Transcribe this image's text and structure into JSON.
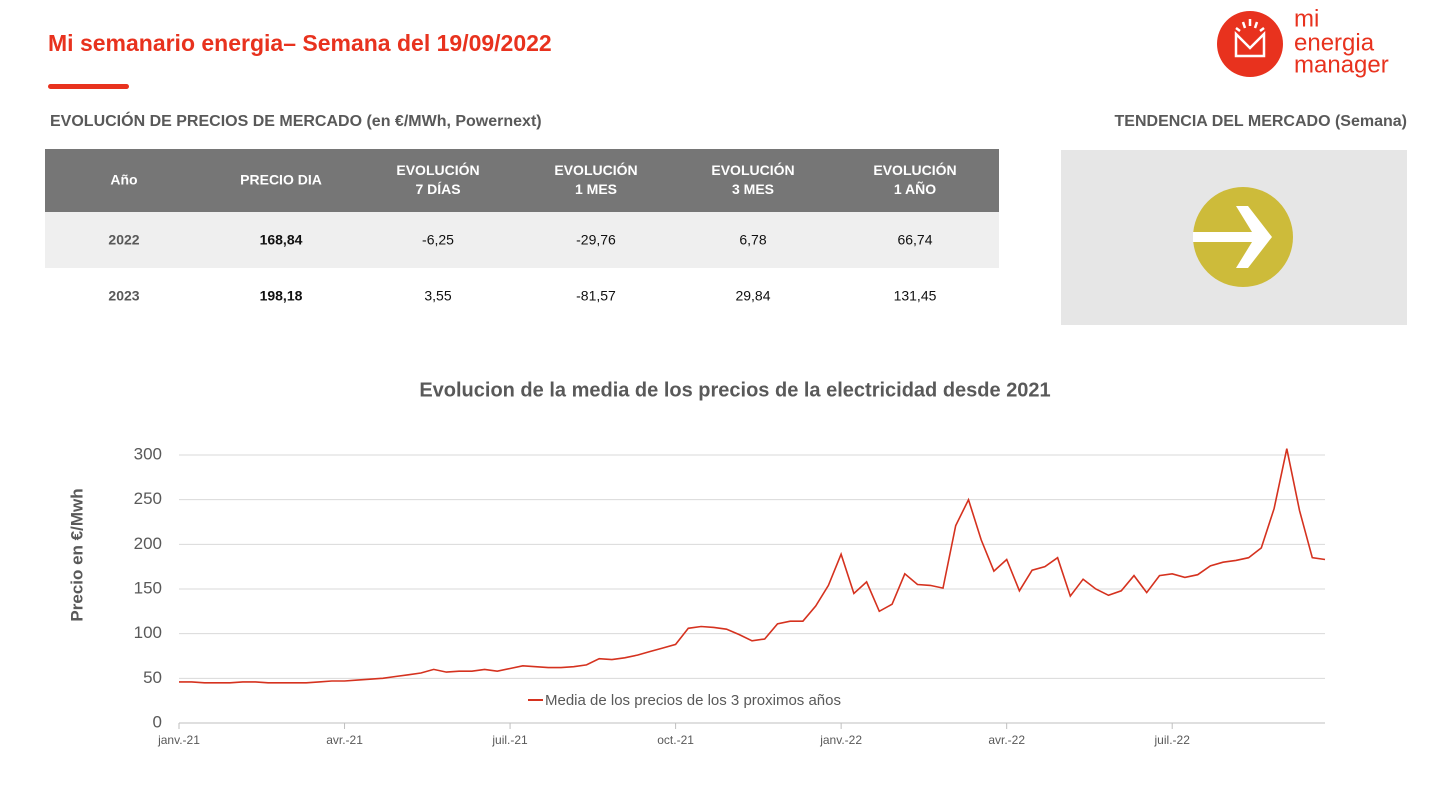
{
  "header": {
    "title": "Mi semanario energia– Semana del 19/09/2022",
    "logo": [
      "mi",
      "energia",
      "manager"
    ]
  },
  "table": {
    "caption": "EVOLUCIÓN DE PRECIOS DE MERCADO (en €/MWh, Powernext)",
    "columns": [
      [
        "Año"
      ],
      [
        "PRECIO DIA"
      ],
      [
        "EVOLUCIÓN",
        "7 DÍAS"
      ],
      [
        "EVOLUCIÓN",
        "1 MES"
      ],
      [
        "EVOLUCIÓN",
        "3 MES"
      ],
      [
        "EVOLUCIÓN",
        "1 AÑO"
      ]
    ],
    "rows": [
      [
        "2022",
        "168,84",
        "-6,25",
        "-29,76",
        "6,78",
        "66,74"
      ],
      [
        "2023",
        "198,18",
        "3,55",
        "-81,57",
        "29,84",
        "131,45"
      ]
    ]
  },
  "trend": {
    "title": "TENDENCIA DEL MERCADO (Semana)"
  },
  "chart_data": {
    "type": "line",
    "title": "Evolucion de la media de los precios de la electricidad desde 2021",
    "ylabel": "Precio en €/Mwh",
    "categories": [
      "janv.-21",
      null,
      null,
      null,
      null,
      null,
      null,
      null,
      null,
      null,
      null,
      null,
      null,
      "avr.-21",
      null,
      null,
      null,
      null,
      null,
      null,
      null,
      null,
      null,
      null,
      null,
      null,
      "juil.-21",
      null,
      null,
      null,
      null,
      null,
      null,
      null,
      null,
      null,
      null,
      null,
      null,
      "oct.-21",
      null,
      null,
      null,
      null,
      null,
      null,
      null,
      null,
      null,
      null,
      null,
      null,
      "janv.-22",
      null,
      null,
      null,
      null,
      null,
      null,
      null,
      null,
      null,
      null,
      null,
      null,
      "avr.-22",
      null,
      null,
      null,
      null,
      null,
      null,
      null,
      null,
      null,
      null,
      null,
      null,
      "juil.-22",
      null,
      null,
      null,
      null,
      null,
      null,
      null,
      null,
      null,
      null,
      null,
      null
    ],
    "series": [
      {
        "name": "Media de los precios de los 3 proximos años",
        "color": "#d5321f",
        "values": [
          46,
          46,
          45,
          45,
          45,
          46,
          46,
          45,
          45,
          45,
          45,
          46,
          47,
          47,
          48,
          49,
          50,
          52,
          54,
          56,
          60,
          57,
          58,
          58,
          60,
          58,
          61,
          64,
          63,
          62,
          62,
          63,
          65,
          72,
          71,
          73,
          76,
          80,
          84,
          88,
          106,
          108,
          107,
          105,
          99,
          92,
          94,
          111,
          114,
          114,
          131,
          154,
          189,
          145,
          158,
          125,
          133,
          167,
          155,
          154,
          151,
          221,
          250,
          205,
          170,
          183,
          148,
          171,
          175,
          185,
          142,
          161,
          150,
          143,
          148,
          165,
          146,
          165,
          167,
          163,
          166,
          176,
          180,
          182,
          185,
          196,
          240,
          307,
          238,
          185,
          183
        ]
      }
    ],
    "ylim": [
      0,
      300
    ],
    "yticks": [
      0,
      50,
      100,
      150,
      200,
      250,
      300
    ],
    "grid": true,
    "legend": "bottom"
  }
}
